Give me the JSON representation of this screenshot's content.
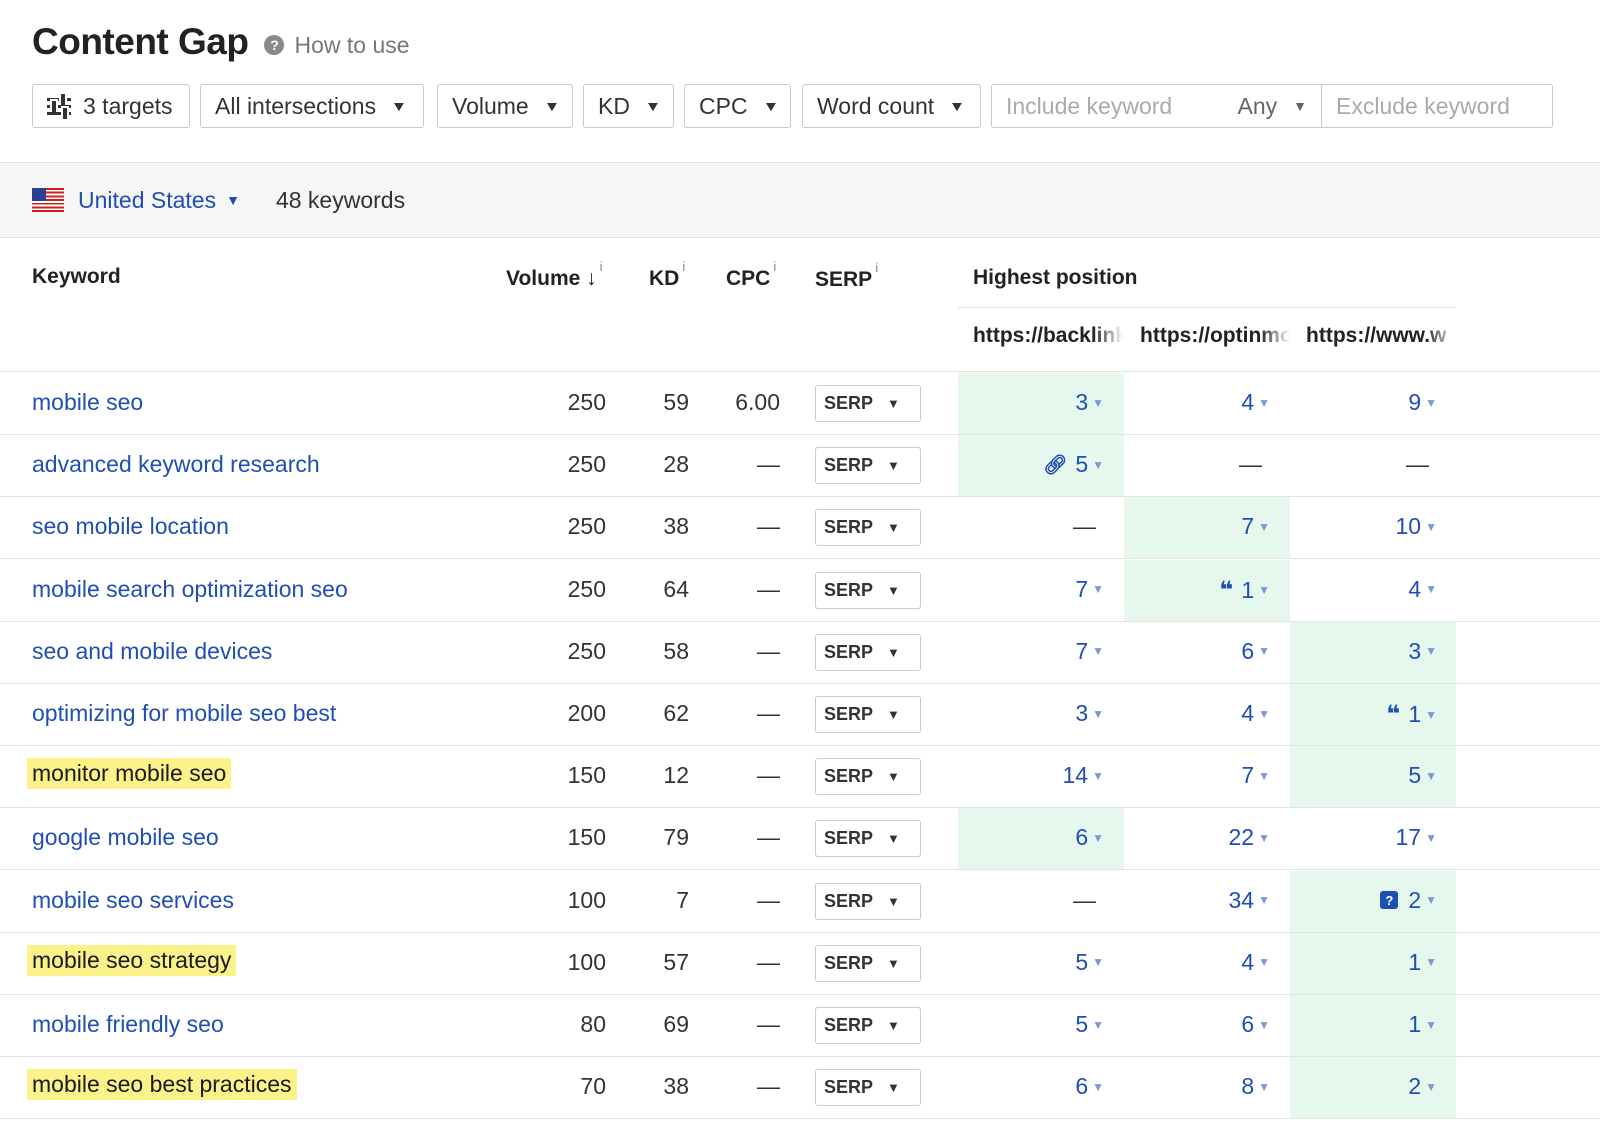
{
  "header": {
    "title": "Content Gap",
    "help_icon": "question-circle-icon",
    "help_text": "How to use"
  },
  "filters": {
    "targets": "3 targets",
    "intersections": "All intersections",
    "volume": "Volume",
    "kd": "KD",
    "cpc": "CPC",
    "word_count": "Word count",
    "include_placeholder": "Include keyword",
    "any": "Any",
    "exclude_placeholder": "Exclude keyword"
  },
  "country_bar": {
    "flag": "us-flag-icon",
    "country": "United States",
    "keyword_count": "48 keywords"
  },
  "table": {
    "headers": {
      "keyword": "Keyword",
      "volume": "Volume ↓",
      "kd": "KD",
      "cpc": "CPC",
      "serp": "SERP",
      "info": "i",
      "highest_position": "Highest position"
    },
    "targets": [
      "https://backlinko.com",
      "https://optinmonster.com",
      "https://www.w"
    ],
    "serp_label": "SERP",
    "rows": [
      {
        "keyword": "mobile seo",
        "highlight": false,
        "volume": "250",
        "kd": "59",
        "cpc": "6.00",
        "best": 0,
        "pos": [
          {
            "v": "3"
          },
          {
            "v": "4"
          },
          {
            "v": "9"
          }
        ]
      },
      {
        "keyword": "advanced keyword research",
        "highlight": false,
        "volume": "250",
        "kd": "28",
        "cpc": "—",
        "best": 0,
        "pos": [
          {
            "v": "5",
            "feature": "link"
          },
          {
            "v": "—"
          },
          {
            "v": "—"
          }
        ]
      },
      {
        "keyword": "seo mobile location",
        "highlight": false,
        "volume": "250",
        "kd": "38",
        "cpc": "—",
        "best": 1,
        "pos": [
          {
            "v": "—"
          },
          {
            "v": "7"
          },
          {
            "v": "10"
          }
        ]
      },
      {
        "keyword": "mobile search optimization seo",
        "highlight": false,
        "volume": "250",
        "kd": "64",
        "cpc": "—",
        "best": 1,
        "pos": [
          {
            "v": "7"
          },
          {
            "v": "1",
            "feature": "quote"
          },
          {
            "v": "4"
          }
        ]
      },
      {
        "keyword": "seo and mobile devices",
        "highlight": false,
        "volume": "250",
        "kd": "58",
        "cpc": "—",
        "best": 2,
        "pos": [
          {
            "v": "7"
          },
          {
            "v": "6"
          },
          {
            "v": "3"
          }
        ]
      },
      {
        "keyword": "optimizing for mobile seo best",
        "highlight": false,
        "volume": "200",
        "kd": "62",
        "cpc": "—",
        "best": 2,
        "pos": [
          {
            "v": "3"
          },
          {
            "v": "4"
          },
          {
            "v": "1",
            "feature": "quote"
          }
        ]
      },
      {
        "keyword": "monitor mobile seo",
        "highlight": true,
        "volume": "150",
        "kd": "12",
        "cpc": "—",
        "best": 2,
        "pos": [
          {
            "v": "14"
          },
          {
            "v": "7"
          },
          {
            "v": "5"
          }
        ]
      },
      {
        "keyword": "google mobile seo",
        "highlight": false,
        "volume": "150",
        "kd": "79",
        "cpc": "—",
        "best": 0,
        "pos": [
          {
            "v": "6"
          },
          {
            "v": "22"
          },
          {
            "v": "17"
          }
        ]
      },
      {
        "keyword": "mobile seo services",
        "highlight": false,
        "volume": "100",
        "kd": "7",
        "cpc": "—",
        "best": 2,
        "pos": [
          {
            "v": "—"
          },
          {
            "v": "34"
          },
          {
            "v": "2",
            "feature": "qa"
          }
        ]
      },
      {
        "keyword": "mobile seo strategy",
        "highlight": true,
        "volume": "100",
        "kd": "57",
        "cpc": "—",
        "best": 2,
        "pos": [
          {
            "v": "5"
          },
          {
            "v": "4"
          },
          {
            "v": "1"
          }
        ]
      },
      {
        "keyword": "mobile friendly seo",
        "highlight": false,
        "volume": "80",
        "kd": "69",
        "cpc": "—",
        "best": 2,
        "pos": [
          {
            "v": "5"
          },
          {
            "v": "6"
          },
          {
            "v": "1"
          }
        ]
      },
      {
        "keyword": "mobile seo best practices",
        "highlight": true,
        "volume": "70",
        "kd": "38",
        "cpc": "—",
        "best": 2,
        "pos": [
          {
            "v": "6"
          },
          {
            "v": "8"
          },
          {
            "v": "2"
          }
        ]
      }
    ]
  },
  "colors": {
    "link": "#1f4fb3",
    "best_position_bg": "#e6f8ee",
    "keyword_highlight": "#fbf38a"
  }
}
